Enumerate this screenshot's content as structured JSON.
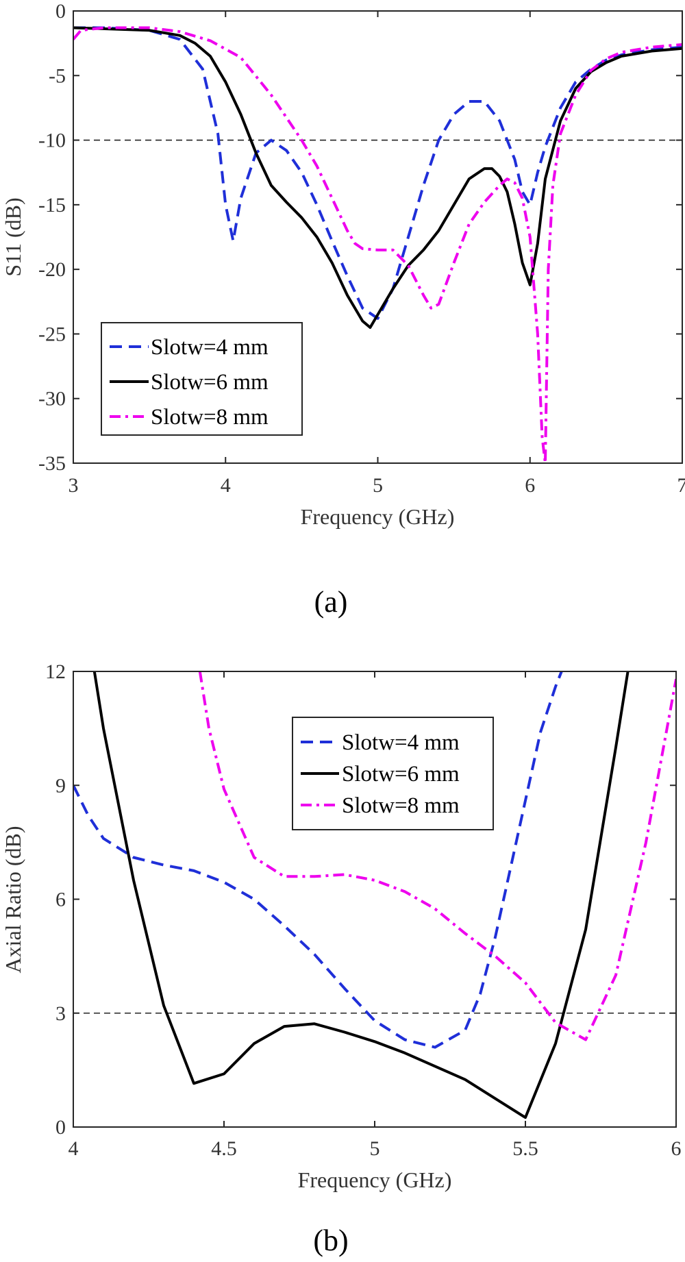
{
  "chart_data": [
    {
      "type": "line",
      "panel_label": "(a)",
      "xlabel": "Frequency (GHz)",
      "ylabel": "S11 (dB)",
      "xlim": [
        3,
        7
      ],
      "ylim": [
        -35,
        0
      ],
      "xticks": [
        "3",
        "4",
        "5",
        "6",
        "7"
      ],
      "yticks": [
        "0",
        "-5",
        "-10",
        "-15",
        "-20",
        "-25",
        "-30",
        "-35"
      ],
      "reference_line": -10,
      "legend_position": "bottom-left",
      "series": [
        {
          "name": "Slotw=4 mm",
          "color": "#1f2fd8",
          "dash": "dashed",
          "x": [
            3.0,
            3.2,
            3.5,
            3.7,
            3.85,
            3.95,
            4.0,
            4.05,
            4.1,
            4.2,
            4.3,
            4.4,
            4.5,
            4.6,
            4.7,
            4.8,
            4.9,
            5.0,
            5.1,
            5.2,
            5.3,
            5.4,
            5.5,
            5.6,
            5.7,
            5.8,
            5.9,
            5.95,
            6.0,
            6.05,
            6.1,
            6.2,
            6.3,
            6.4,
            6.5,
            6.6,
            6.8,
            7.0
          ],
          "y": [
            -1.3,
            -1.3,
            -1.5,
            -2.2,
            -4.5,
            -9.5,
            -15.0,
            -17.8,
            -14.5,
            -11.0,
            -10.0,
            -10.8,
            -12.5,
            -15.0,
            -17.8,
            -20.5,
            -23.0,
            -23.8,
            -21.5,
            -17.5,
            -13.5,
            -10.0,
            -8.0,
            -7.0,
            -7.0,
            -8.5,
            -11.5,
            -14.0,
            -15.0,
            -12.5,
            -10.5,
            -7.5,
            -5.5,
            -4.5,
            -3.8,
            -3.4,
            -3.0,
            -2.8
          ]
        },
        {
          "name": "Slotw=6 mm",
          "color": "#000000",
          "dash": "solid",
          "x": [
            3.0,
            3.5,
            3.7,
            3.8,
            3.9,
            4.0,
            4.1,
            4.2,
            4.3,
            4.4,
            4.5,
            4.6,
            4.7,
            4.8,
            4.9,
            4.95,
            5.0,
            5.1,
            5.2,
            5.3,
            5.4,
            5.5,
            5.6,
            5.7,
            5.75,
            5.8,
            5.85,
            5.9,
            5.95,
            6.0,
            6.05,
            6.1,
            6.2,
            6.3,
            6.4,
            6.5,
            6.6,
            6.8,
            7.0
          ],
          "y": [
            -1.3,
            -1.5,
            -1.9,
            -2.5,
            -3.5,
            -5.5,
            -8.0,
            -11.0,
            -13.5,
            -14.8,
            -16.0,
            -17.5,
            -19.5,
            -22.0,
            -24.0,
            -24.5,
            -23.5,
            -21.5,
            -19.7,
            -18.5,
            -17.0,
            -15.0,
            -13.0,
            -12.2,
            -12.2,
            -12.8,
            -14.0,
            -16.5,
            -19.5,
            -21.2,
            -18.0,
            -13.0,
            -8.5,
            -6.0,
            -4.7,
            -4.0,
            -3.5,
            -3.1,
            -2.9
          ]
        },
        {
          "name": "Slotw=8 mm",
          "color": "#ee00ee",
          "dash": "dashdot",
          "x": [
            3.0,
            3.05,
            3.2,
            3.5,
            3.7,
            3.9,
            4.1,
            4.3,
            4.5,
            4.6,
            4.7,
            4.8,
            4.85,
            4.9,
            5.0,
            5.1,
            5.2,
            5.3,
            5.35,
            5.4,
            5.5,
            5.6,
            5.7,
            5.8,
            5.85,
            5.9,
            5.95,
            6.0,
            6.05,
            6.08,
            6.1,
            6.12,
            6.15,
            6.2,
            6.3,
            6.4,
            6.5,
            6.6,
            6.8,
            7.0
          ],
          "y": [
            -2.2,
            -1.5,
            -1.3,
            -1.3,
            -1.6,
            -2.3,
            -3.6,
            -6.5,
            -10.0,
            -12.0,
            -14.5,
            -17.0,
            -18.0,
            -18.4,
            -18.5,
            -18.5,
            -19.7,
            -22.0,
            -23.0,
            -22.7,
            -19.5,
            -16.5,
            -14.8,
            -13.5,
            -13.0,
            -13.3,
            -14.5,
            -17.5,
            -25.0,
            -33.0,
            -35.0,
            -20.0,
            -13.5,
            -9.5,
            -6.5,
            -4.6,
            -3.7,
            -3.2,
            -2.8,
            -2.6
          ]
        }
      ]
    },
    {
      "type": "line",
      "panel_label": "(b)",
      "xlabel": "Frequency (GHz)",
      "ylabel": "Axial Ratio (dB)",
      "xlim": [
        4,
        6
      ],
      "ylim": [
        0,
        12
      ],
      "xticks": [
        "4",
        "4.5",
        "5",
        "5.5",
        "6"
      ],
      "yticks": [
        "0",
        "3",
        "6",
        "9",
        "12"
      ],
      "reference_line": 3,
      "legend_position": "top-right",
      "series": [
        {
          "name": "Slotw=4 mm",
          "color": "#1f2fd8",
          "dash": "dashed",
          "x": [
            4.0,
            4.05,
            4.1,
            4.2,
            4.3,
            4.4,
            4.5,
            4.6,
            4.7,
            4.8,
            4.9,
            5.0,
            5.1,
            5.2,
            5.3,
            5.35,
            5.4,
            5.45,
            5.5,
            5.55,
            5.6,
            5.62
          ],
          "y": [
            9.0,
            8.2,
            7.6,
            7.1,
            6.9,
            6.75,
            6.45,
            6.0,
            5.3,
            4.55,
            3.65,
            2.8,
            2.3,
            2.1,
            2.55,
            3.5,
            5.0,
            6.8,
            8.6,
            10.4,
            11.6,
            12.0
          ]
        },
        {
          "name": "Slotw=6 mm",
          "color": "#000000",
          "dash": "solid",
          "x": [
            4.07,
            4.1,
            4.2,
            4.3,
            4.4,
            4.5,
            4.6,
            4.7,
            4.8,
            4.9,
            5.0,
            5.1,
            5.2,
            5.3,
            5.4,
            5.5,
            5.6,
            5.7,
            5.8,
            5.84
          ],
          "y": [
            12.0,
            10.5,
            6.5,
            3.2,
            1.15,
            1.4,
            2.2,
            2.65,
            2.72,
            2.5,
            2.25,
            1.95,
            1.6,
            1.25,
            0.75,
            0.25,
            2.2,
            5.2,
            10.0,
            12.0
          ]
        },
        {
          "name": "Slotw=8 mm",
          "color": "#ee00ee",
          "dash": "dashdot",
          "x": [
            4.42,
            4.45,
            4.5,
            4.55,
            4.6,
            4.7,
            4.8,
            4.9,
            5.0,
            5.1,
            5.2,
            5.3,
            5.4,
            5.5,
            5.6,
            5.7,
            5.8,
            5.9,
            6.0
          ],
          "y": [
            12.0,
            10.5,
            8.9,
            8.0,
            7.1,
            6.6,
            6.6,
            6.65,
            6.5,
            6.2,
            5.75,
            5.1,
            4.5,
            3.8,
            2.75,
            2.3,
            4.0,
            7.5,
            11.8
          ]
        }
      ]
    }
  ]
}
